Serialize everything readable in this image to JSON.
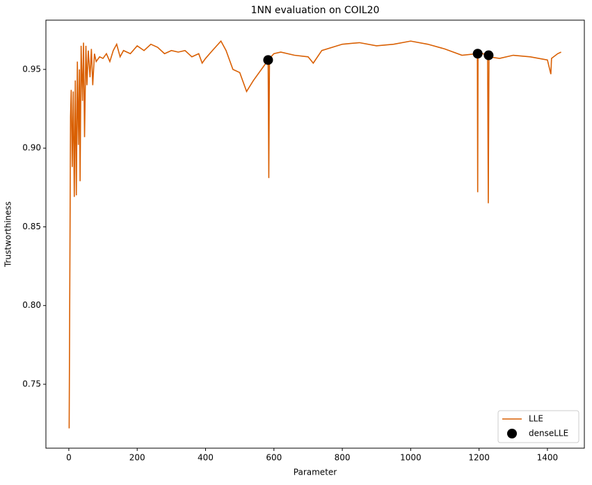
{
  "chart_data": {
    "type": "line",
    "title": "1NN evaluation on COIL20",
    "xlabel": "Parameter",
    "ylabel": "Trustworthiness",
    "xlim": [
      -67,
      1508
    ],
    "ylim": [
      0.7094,
      0.9813
    ],
    "xticks": [
      0,
      200,
      400,
      600,
      800,
      1000,
      1200,
      1400
    ],
    "yticks": [
      0.75,
      {
        "value": 0.8,
        "label": "0.80"
      },
      0.85,
      {
        "value": 0.9,
        "label": "0.90"
      },
      0.95
    ],
    "legend": "lower right",
    "series": [
      {
        "name": "LLE",
        "color": "#d95f02",
        "kind": "line",
        "x": [
          1,
          3,
          5,
          7,
          10,
          13,
          16,
          19,
          22,
          25,
          28,
          31,
          33,
          36,
          40,
          43,
          46,
          50,
          53,
          57,
          62,
          66,
          70,
          75,
          80,
          90,
          100,
          110,
          120,
          130,
          140,
          150,
          160,
          180,
          200,
          220,
          240,
          260,
          280,
          300,
          320,
          340,
          360,
          380,
          390,
          400,
          420,
          445,
          460,
          480,
          500,
          520,
          540,
          570,
          583,
          585,
          587,
          600,
          620,
          660,
          700,
          715,
          740,
          800,
          850,
          900,
          950,
          1000,
          1050,
          1100,
          1150,
          1195,
          1196,
          1197,
          1225,
          1227,
          1229,
          1260,
          1300,
          1350,
          1400,
          1410,
          1412,
          1430,
          1440
        ],
        "values": [
          0.722,
          0.82,
          0.92,
          0.937,
          0.888,
          0.936,
          0.869,
          0.943,
          0.87,
          0.955,
          0.902,
          0.95,
          0.879,
          0.965,
          0.93,
          0.967,
          0.907,
          0.965,
          0.94,
          0.962,
          0.945,
          0.963,
          0.94,
          0.96,
          0.955,
          0.958,
          0.957,
          0.96,
          0.955,
          0.962,
          0.966,
          0.958,
          0.962,
          0.96,
          0.965,
          0.962,
          0.966,
          0.964,
          0.96,
          0.962,
          0.961,
          0.962,
          0.958,
          0.96,
          0.954,
          0.957,
          0.962,
          0.968,
          0.962,
          0.95,
          0.948,
          0.936,
          0.943,
          0.952,
          0.956,
          0.881,
          0.957,
          0.96,
          0.961,
          0.959,
          0.958,
          0.954,
          0.962,
          0.966,
          0.967,
          0.965,
          0.966,
          0.968,
          0.966,
          0.963,
          0.959,
          0.96,
          0.872,
          0.961,
          0.959,
          0.865,
          0.958,
          0.957,
          0.959,
          0.958,
          0.956,
          0.947,
          0.957,
          0.96,
          0.961
        ]
      },
      {
        "name": "denseLLE",
        "color": "#000000",
        "kind": "scatter",
        "x": [
          583,
          1196,
          1228
        ],
        "values": [
          0.956,
          0.96,
          0.959
        ]
      }
    ]
  }
}
